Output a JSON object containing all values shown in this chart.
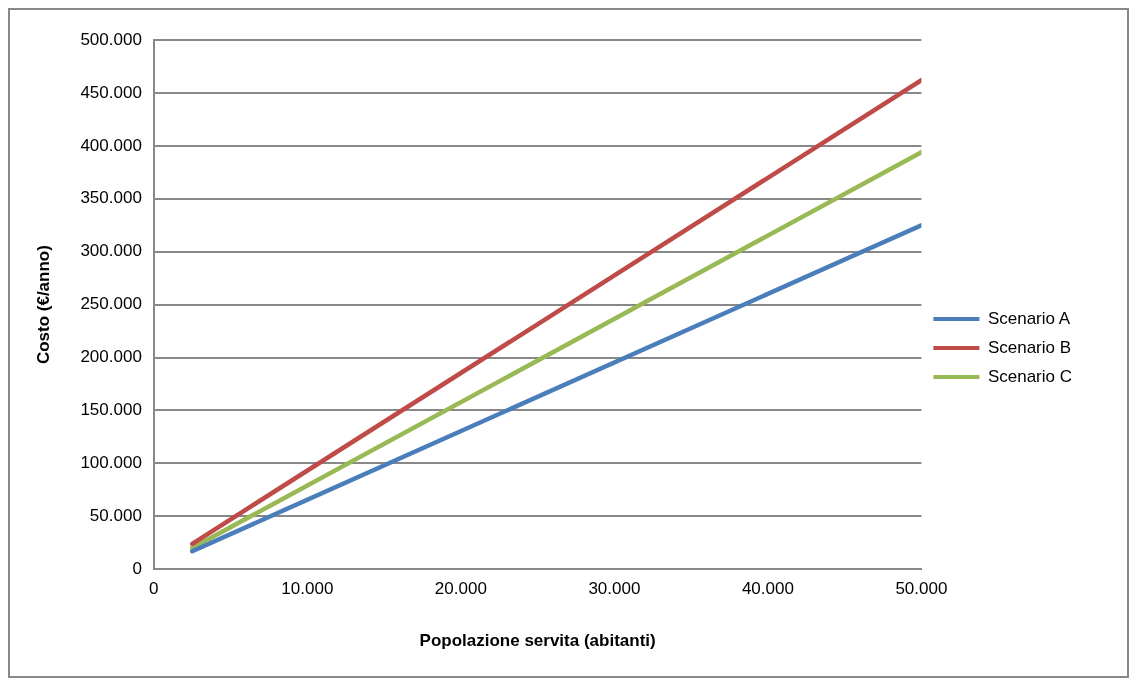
{
  "chart_data": {
    "type": "line",
    "xlabel": "Popolazione servita (abitanti)",
    "ylabel": "Costo (€/anno)",
    "x": [
      2500,
      50000
    ],
    "series": [
      {
        "name": "Scenario A",
        "color": "#4a7ebb",
        "values": [
          17000,
          325000
        ]
      },
      {
        "name": "Scenario B",
        "color": "#be4b48",
        "values": [
          24000,
          462000
        ]
      },
      {
        "name": "Scenario C",
        "color": "#98b954",
        "values": [
          20000,
          394000
        ]
      }
    ],
    "xlim": [
      0,
      50000
    ],
    "xticks": [
      0,
      {
        "value": 10000,
        "label": "10.000"
      },
      {
        "value": 20000,
        "label": "20.000"
      },
      {
        "value": 30000,
        "label": "30.000"
      },
      {
        "value": 40000,
        "label": "40.000"
      },
      {
        "value": 50000,
        "label": "50.000"
      }
    ],
    "ylim": [
      0,
      500000
    ],
    "yticks": [
      0,
      {
        "value": 50000,
        "label": "50.000"
      },
      {
        "value": 100000,
        "label": "100.000"
      },
      {
        "value": 150000,
        "label": "150.000"
      },
      {
        "value": 200000,
        "label": "200.000"
      },
      {
        "value": 250000,
        "label": "250.000"
      },
      {
        "value": 300000,
        "label": "300.000"
      },
      {
        "value": 350000,
        "label": "350.000"
      },
      {
        "value": 400000,
        "label": "400.000"
      },
      {
        "value": 450000,
        "label": "450.000"
      },
      {
        "value": 500000,
        "label": "500.000"
      }
    ],
    "grid": "y",
    "legend": "right",
    "marker": "none",
    "line_style": "solid"
  }
}
